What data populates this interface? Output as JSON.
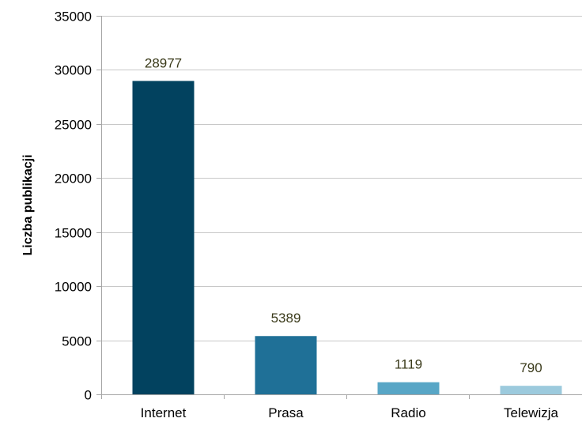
{
  "chart_data": {
    "type": "bar",
    "title": "",
    "xlabel": "",
    "ylabel": "Liczba publikacji",
    "categories": [
      "Internet",
      "Prasa",
      "Radio",
      "Telewizja"
    ],
    "values": [
      28977,
      5389,
      1119,
      790
    ],
    "data_labels": [
      "28977",
      "5389",
      "1119",
      "790"
    ],
    "bar_colors": [
      "#02425f",
      "#1f7097",
      "#58a6c6",
      "#9ccadd"
    ],
    "ylim": [
      0,
      35000
    ],
    "yticks": [
      0,
      5000,
      10000,
      15000,
      20000,
      25000,
      30000,
      35000
    ],
    "ytick_labels": [
      "0",
      "5000",
      "10000",
      "15000",
      "20000",
      "25000",
      "30000",
      "35000"
    ],
    "grid": true,
    "legend": "none"
  }
}
